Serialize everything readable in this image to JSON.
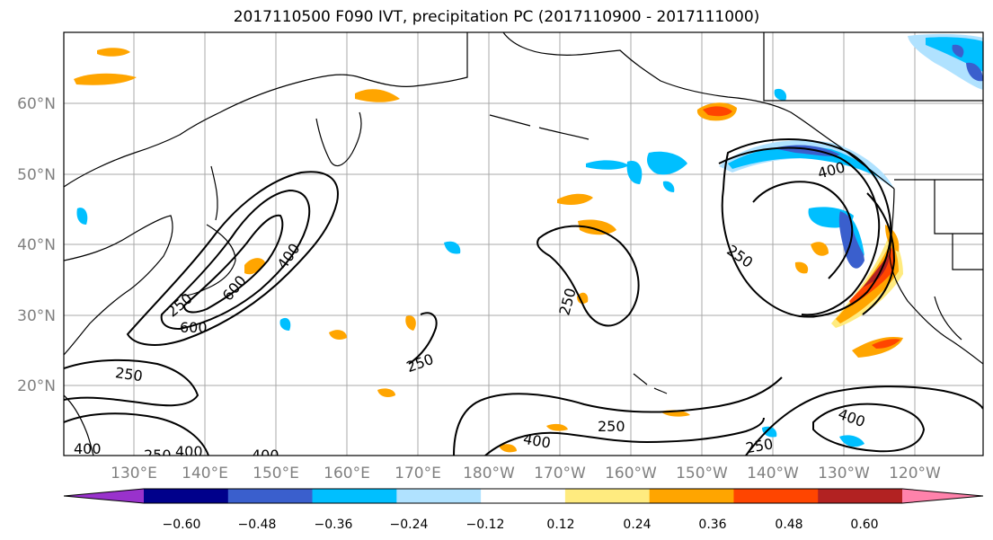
{
  "title": "2017110500 F090 IVT, precipitation PC (2017110900 - 2017111000)",
  "lat_labels": [
    "60°N",
    "50°N",
    "40°N",
    "30°N",
    "20°N"
  ],
  "lon_labels": [
    "130°E",
    "140°E",
    "150°E",
    "160°E",
    "170°E",
    "180°W",
    "170°W",
    "160°W",
    "150°W",
    "140°W",
    "130°W",
    "120°W"
  ],
  "colorbar": {
    "colors": [
      "#9932cc",
      "#00008b",
      "#3a5fcd",
      "#00bfff",
      "#b0e2ff",
      "#ffffff",
      "#ffeb7f",
      "#ffa500",
      "#ff4500",
      "#b22222",
      "#ff82ab"
    ],
    "tick_labels": [
      "−0.60",
      "−0.48",
      "−0.36",
      "−0.24",
      "−0.12",
      "0.12",
      "0.24",
      "0.36",
      "0.48",
      "0.60"
    ]
  },
  "contour_labels": [
    "250",
    "600",
    "400",
    "600",
    "250",
    "400",
    "250",
    "250",
    "250",
    "400",
    "250",
    "400",
    "400",
    "400",
    "250",
    "250",
    "400"
  ],
  "colors": {
    "gridline": "#a8a8a8",
    "tick_text": "#808080"
  }
}
